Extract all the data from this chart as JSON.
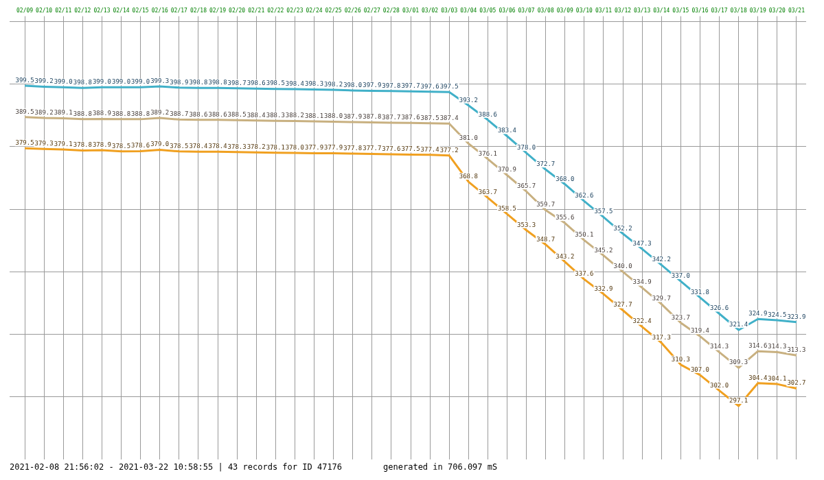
{
  "chart_data": {
    "type": "line",
    "categories": [
      "02/09",
      "02/10",
      "02/11",
      "02/12",
      "02/13",
      "02/14",
      "02/15",
      "02/16",
      "02/17",
      "02/18",
      "02/19",
      "02/20",
      "02/21",
      "02/22",
      "02/23",
      "02/24",
      "02/25",
      "02/26",
      "02/27",
      "02/28",
      "03/01",
      "03/02",
      "03/03",
      "03/04",
      "03/05",
      "03/06",
      "03/07",
      "03/08",
      "03/09",
      "03/10",
      "03/11",
      "03/12",
      "03/13",
      "03/14",
      "03/15",
      "03/16",
      "03/17",
      "03/18",
      "03/19",
      "03/20",
      "03/21"
    ],
    "series": [
      {
        "color": "#40b0c8",
        "values": [
          399.5,
          399.2,
          399.0,
          398.8,
          399.0,
          399.0,
          399.0,
          399.3,
          398.9,
          398.8,
          398.8,
          398.7,
          398.6,
          398.5,
          398.4,
          398.3,
          398.2,
          398.0,
          397.9,
          397.8,
          397.7,
          397.6,
          397.5,
          393.2,
          388.6,
          383.4,
          378.0,
          372.7,
          368.0,
          362.6,
          357.5,
          352.2,
          347.3,
          342.2,
          337.0,
          331.8,
          326.6,
          321.4,
          324.9,
          324.5,
          323.9
        ],
        "value_labels": [
          "399.5",
          "399.2",
          "399.0",
          "398.8",
          "399.0",
          "399.0",
          "399.0",
          "399.3",
          "398.9",
          "398.8",
          "398.8",
          "398.7",
          "398.6",
          "398.5",
          "398.4",
          "398.3",
          "398.2",
          "398.0",
          "397.9",
          "397.8",
          "397.7",
          "397.6",
          "397.5",
          "393.2",
          "388.6",
          "383.4",
          "378.0",
          "372.7",
          "368.0",
          "362.6",
          "357.5",
          "352.2",
          "347.3",
          "342.2",
          "337.0",
          "331.8",
          "326.6",
          "321.4",
          "324.9",
          "324.5",
          "323.9"
        ]
      },
      {
        "color": "#c8b080",
        "values": [
          389.5,
          389.2,
          389.1,
          388.8,
          388.9,
          388.8,
          388.8,
          389.2,
          388.7,
          388.6,
          388.6,
          388.5,
          388.4,
          388.3,
          388.2,
          388.1,
          388.0,
          387.9,
          387.8,
          387.7,
          387.6,
          387.5,
          387.4,
          381.0,
          376.1,
          370.9,
          365.7,
          359.7,
          355.6,
          350.1,
          345.2,
          340.0,
          334.9,
          329.7,
          323.7,
          319.4,
          314.3,
          309.3,
          314.6,
          314.3,
          313.3
        ],
        "value_labels": [
          "389.5",
          "389.2",
          "389.1",
          "388.8",
          "388.9",
          "388.8",
          "388.8",
          "389.2",
          "388.7",
          "388.6",
          "388.6",
          "388.5",
          "388.4",
          "388.3",
          "388.2",
          "388.1",
          "388.0",
          "387.9",
          "387.8",
          "387.7",
          "387.6",
          "387.5",
          "387.4",
          "381.0",
          "376.1",
          "370.9",
          "365.7",
          "359.7",
          "355.6",
          "350.1",
          "345.2",
          "340.0",
          "334.9",
          "329.7",
          "323.7",
          "319.4",
          "314.3",
          "309.3",
          "314.6",
          "314.3",
          "313.3"
        ]
      },
      {
        "color": "#f0a020",
        "values": [
          379.5,
          379.3,
          379.1,
          378.8,
          378.9,
          378.5,
          378.6,
          379.0,
          378.5,
          378.4,
          378.4,
          378.3,
          378.2,
          378.1,
          378.0,
          377.9,
          377.9,
          377.8,
          377.7,
          377.6,
          377.5,
          377.4,
          377.2,
          368.8,
          363.7,
          358.5,
          353.3,
          348.7,
          343.2,
          337.6,
          332.9,
          327.7,
          322.4,
          317.3,
          310.3,
          307.0,
          302.0,
          297.1,
          304.4,
          304.1,
          302.7
        ],
        "value_labels": [
          "379.5",
          "379.3",
          "379.1",
          "378.8",
          "378.9",
          "378.5",
          "378.6",
          "379.0",
          "378.5",
          "378.4",
          "378.4",
          "378.3",
          "378.2",
          "378.1",
          "378.0",
          "377.9",
          "377.9",
          "377.8",
          "377.7",
          "377.6",
          "377.5",
          "377.4",
          "377.2",
          "368.8",
          "363.7",
          "358.5",
          "353.3",
          "348.7",
          "343.2",
          "337.6",
          "332.9",
          "327.7",
          "322.4",
          "317.3",
          "310.3",
          "307.0",
          "302.0",
          "297.1",
          "304.4",
          "304.1",
          "302.7"
        ]
      }
    ],
    "grid": true,
    "legend": false,
    "marker": "none",
    "line_style": "solid",
    "annotations": [
      "2021-02-08 21:56:02 - 2021-03-22 10:58:55 | 43 records for ID 47176",
      "generated in 706.097 mS"
    ]
  }
}
